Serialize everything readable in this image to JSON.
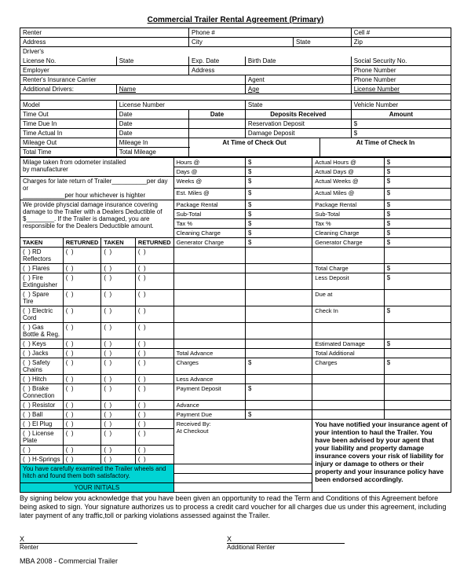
{
  "title": "Commercial Trailer Rental Agreement (Primary)",
  "header_rows": [
    [
      "Renter",
      "Phone #",
      "Cell #"
    ],
    [
      "Address",
      "City",
      "State",
      "Zip"
    ]
  ],
  "driver_row": "Driver's",
  "license_row": [
    "License No.",
    "State",
    "Exp. Date",
    "Birth Date",
    "Social Security No."
  ],
  "employer_row": [
    "Employer",
    "Address",
    "Phone Number"
  ],
  "insurance_row": [
    "Renter's Insurance Carrier",
    "Agent",
    "Phone Number"
  ],
  "additional_drivers_row": [
    "Additional Drivers:",
    "Name",
    "Age",
    "License Number"
  ],
  "vehicle_row": [
    "Model",
    "License Number",
    "State",
    "Vehicle Number"
  ],
  "time_header": [
    "Time Out",
    "Date",
    "Date",
    "Deposits Received",
    "Amount"
  ],
  "time_due": [
    "Time Due In",
    "Date",
    "",
    "Reservation Deposit",
    ""
  ],
  "time_actual": [
    "Time Actual In",
    "Date",
    "",
    "Damage Deposit",
    ""
  ],
  "mileage_out": [
    "Mileage Out",
    "Mileage In"
  ],
  "total_time": [
    "Total Time",
    "Total Mileage"
  ],
  "check_headers": [
    "At Time of Check Out",
    "At Time of Check In"
  ],
  "milage_text": [
    "Milage taken from odometer installed",
    "by manufacturer"
  ],
  "late_text": [
    "Charges for late return of Trailer",
    "per day or",
    "per hour whichever is highter"
  ],
  "insurance_text": [
    "We provide physcial damage insurance covering",
    "damage to the Trailer with a Dealers Deductible of",
    "$________. If the Trailer is damaged, you are",
    "responsible for the Dealers Deductible amount."
  ],
  "col_headers": [
    "TAKEN",
    "RETURNED",
    "TAKEN",
    "RETURNED"
  ],
  "equipment": [
    "RD Reflectors",
    "Flares",
    "Fire Extinguisher",
    "Spare Tire",
    "Electric Cord",
    "Gas Bottle & Reg.",
    "Keys",
    "Jacks",
    "Safety Chains",
    "Hitch",
    "Brake Connection",
    "Resistor",
    "Ball",
    "El Plug",
    "License Plate",
    "",
    "H-Springs"
  ],
  "checkout_rows": [
    {
      "out": "Hours @",
      "in": "Actual Hours @"
    },
    {
      "out": "Days @",
      "in": "Actual Days @"
    },
    {
      "out": "Weeks @",
      "in": "Actual Weeks @"
    },
    {
      "out": "Est. Miles @",
      "in": "Actual Miles @"
    },
    {
      "out": "Package Rental",
      "in": "Package Rental"
    },
    {
      "out": "Sub-Total",
      "in": "Sub-Total"
    },
    {
      "out": "Tax %",
      "in": "Tax %"
    },
    {
      "out": "Cleaning Charge",
      "in": "Cleaning Charge"
    },
    {
      "out": "Generator Charge",
      "in": "Generator Charge"
    },
    {
      "out": "",
      "in": ""
    },
    {
      "out": "",
      "in": "Total Charge"
    },
    {
      "out": "",
      "in": "Less Deposit"
    },
    {
      "out": "",
      "in_multi": [
        "Due at",
        "Check In"
      ]
    },
    {
      "out": "",
      "in": ""
    },
    {
      "out": "",
      "in": "Estimated Damage"
    },
    {
      "out": "Total Advance",
      "in_multi": [
        "Total Additional",
        "Charges"
      ]
    },
    {
      "out": "Charges"
    },
    {
      "out": "Less Advance"
    },
    {
      "out": "Payment Deposit"
    },
    {
      "out": "Advance"
    },
    {
      "out": "Payment Due"
    },
    {
      "out_multi": [
        "Received By:",
        "At Checkout"
      ]
    }
  ],
  "highlight1": "You have carefully examined the Trailer wheels and hitch and found them both satisfactory.",
  "highlight2": "YOUR INITIALS",
  "notice": "You have notified your insurance agent of your intention to haul the Trailer. You have been advised by your agent that your liability and property damage insurance covers your risk of liability for injury or damage to others or their property and your insurance policy have been endorsed accordingly.",
  "signing": "By signing below you acknowledge that you have been given an opportunity to read the Term and Conditions of this Agreement before being asked to sign.  Your signature authorizes us to process a credit card voucher for all charges due us under this agreement, including later payment of any traffic,toll or parking violations assessed against the Trailer.",
  "sig_labels": [
    "Renter",
    "Additional Renter"
  ],
  "footer": "MBA 2008 - Commercial  Trailer"
}
